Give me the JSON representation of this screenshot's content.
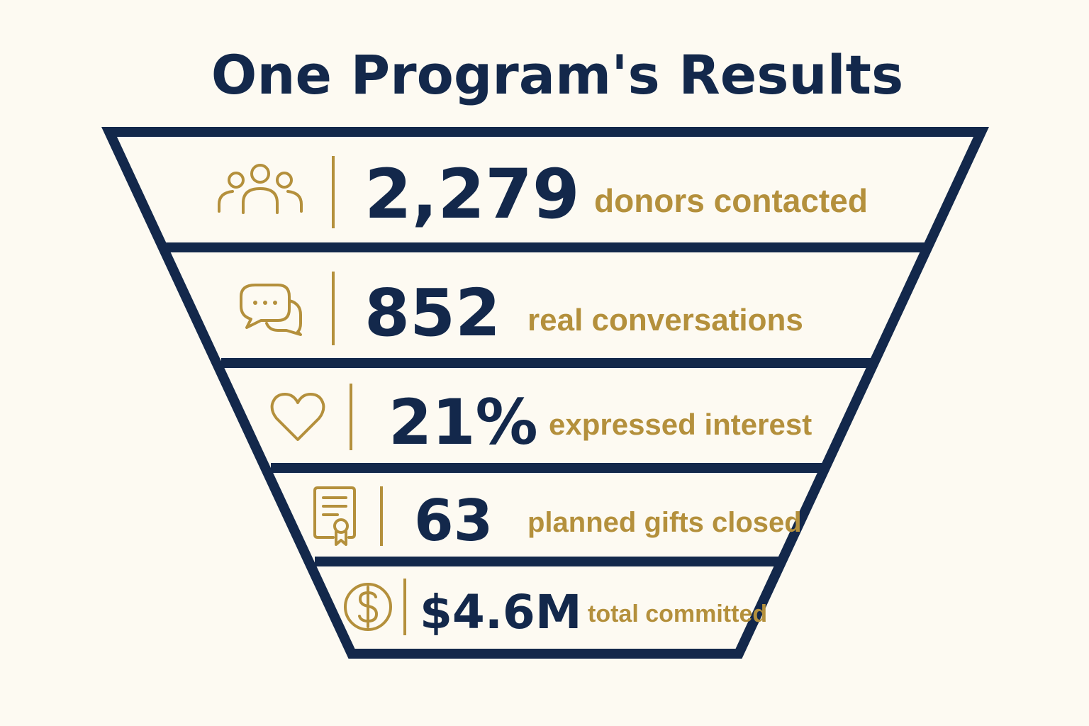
{
  "title": "One Program's Results",
  "colors": {
    "navy": "#13284b",
    "gold": "#b4903c",
    "background": "#fdfaf2"
  },
  "stages": [
    {
      "icon": "people-group-icon",
      "value": "2,279",
      "label": "donors contacted"
    },
    {
      "icon": "chat-bubbles-icon",
      "value": "852",
      "label": "real conversations"
    },
    {
      "icon": "heart-icon",
      "value": "21%",
      "label": "expressed interest"
    },
    {
      "icon": "certificate-icon",
      "value": "63",
      "label": "planned gifts closed"
    },
    {
      "icon": "dollar-coin-icon",
      "value": "$4.6M",
      "label": "total committed"
    }
  ]
}
